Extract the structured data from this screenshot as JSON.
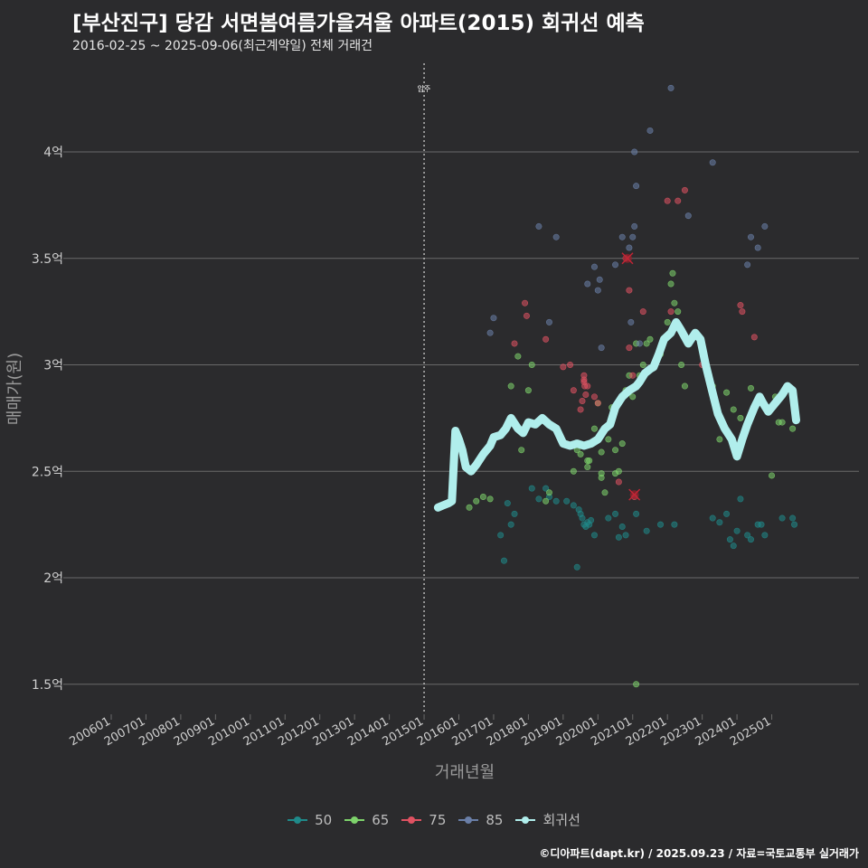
{
  "title": "[부산진구] 당감 서면봄여름가을겨울 아파트(2015) 회귀선 예측",
  "subtitle": "2016-02-25 ~ 2025-09-06(최근계약일) 전체 거래건",
  "caption": "©디아파트(dapt.kr) / 2025.09.23 / 자료=국토교통부 실거래가",
  "colors": {
    "s50": "#1f8a8a",
    "s65": "#7ed36b",
    "s75": "#e05262",
    "s85": "#6a7fa8",
    "reg": "#b0eeec",
    "grid": "#6a6a6a"
  },
  "chart_data": {
    "type": "scatter",
    "xlabel": "거래년월",
    "ylabel": "매매가(원)",
    "ylim": [
      1.4,
      4.35
    ],
    "y_ticks": [
      {
        "v": 1.5,
        "label": "1.5억"
      },
      {
        "v": 2.0,
        "label": "2억"
      },
      {
        "v": 2.5,
        "label": "2.5억"
      },
      {
        "v": 3.0,
        "label": "3억"
      },
      {
        "v": 3.5,
        "label": "3.5억"
      },
      {
        "v": 4.0,
        "label": "4억"
      }
    ],
    "x_ticks": [
      "200601",
      "200701",
      "200801",
      "200901",
      "201001",
      "201101",
      "201201",
      "201301",
      "201401",
      "201501",
      "201601",
      "201701",
      "201801",
      "201901",
      "202001",
      "202101",
      "202201",
      "202301",
      "202401",
      "202501"
    ],
    "annotation": {
      "x": 2015.0,
      "label": "입주"
    },
    "legend": [
      {
        "name": "50",
        "key": "s50"
      },
      {
        "name": "65",
        "key": "s65"
      },
      {
        "name": "75",
        "key": "s75"
      },
      {
        "name": "85",
        "key": "s85"
      },
      {
        "name": "회귀선",
        "key": "reg"
      }
    ],
    "series": [
      {
        "name": "50",
        "key": "s50",
        "points": [
          [
            2017.2,
            2.2
          ],
          [
            2017.3,
            2.08
          ],
          [
            2017.4,
            2.35
          ],
          [
            2017.5,
            2.25
          ],
          [
            2017.6,
            2.3
          ],
          [
            2018.1,
            2.42
          ],
          [
            2018.3,
            2.37
          ],
          [
            2018.5,
            2.42
          ],
          [
            2018.6,
            2.38
          ],
          [
            2018.8,
            2.36
          ],
          [
            2019.1,
            2.36
          ],
          [
            2019.3,
            2.34
          ],
          [
            2019.4,
            2.05
          ],
          [
            2019.45,
            2.32
          ],
          [
            2019.5,
            2.3
          ],
          [
            2019.55,
            2.28
          ],
          [
            2019.6,
            2.25
          ],
          [
            2019.65,
            2.24
          ],
          [
            2019.7,
            2.26
          ],
          [
            2019.75,
            2.25
          ],
          [
            2019.8,
            2.27
          ],
          [
            2019.9,
            2.2
          ],
          [
            2020.3,
            2.28
          ],
          [
            2020.5,
            2.3
          ],
          [
            2020.6,
            2.19
          ],
          [
            2020.7,
            2.24
          ],
          [
            2020.8,
            2.2
          ],
          [
            2021.1,
            2.3
          ],
          [
            2021.4,
            2.22
          ],
          [
            2021.8,
            2.25
          ],
          [
            2022.2,
            2.25
          ],
          [
            2023.3,
            2.28
          ],
          [
            2023.5,
            2.26
          ],
          [
            2023.7,
            2.3
          ],
          [
            2023.8,
            2.18
          ],
          [
            2023.9,
            2.15
          ],
          [
            2024.0,
            2.22
          ],
          [
            2024.1,
            2.37
          ],
          [
            2024.3,
            2.2
          ],
          [
            2024.4,
            2.18
          ],
          [
            2024.6,
            2.25
          ],
          [
            2024.7,
            2.25
          ],
          [
            2024.8,
            2.2
          ],
          [
            2025.3,
            2.28
          ],
          [
            2025.6,
            2.28
          ],
          [
            2025.65,
            2.25
          ]
        ]
      },
      {
        "name": "65",
        "key": "s65",
        "points": [
          [
            2016.3,
            2.33
          ],
          [
            2016.5,
            2.36
          ],
          [
            2016.7,
            2.38
          ],
          [
            2016.9,
            2.37
          ],
          [
            2017.5,
            2.9
          ],
          [
            2017.7,
            3.04
          ],
          [
            2017.8,
            2.6
          ],
          [
            2018.0,
            2.88
          ],
          [
            2018.1,
            3.0
          ],
          [
            2018.5,
            2.36
          ],
          [
            2018.6,
            2.4
          ],
          [
            2019.3,
            2.5
          ],
          [
            2019.4,
            2.6
          ],
          [
            2019.5,
            2.58
          ],
          [
            2019.7,
            2.55
          ],
          [
            2019.7,
            2.52
          ],
          [
            2019.75,
            2.55
          ],
          [
            2019.9,
            2.7
          ],
          [
            2020.0,
            2.82
          ],
          [
            2020.1,
            2.49
          ],
          [
            2020.1,
            2.47
          ],
          [
            2020.1,
            2.59
          ],
          [
            2020.2,
            2.4
          ],
          [
            2020.3,
            2.65
          ],
          [
            2020.4,
            2.8
          ],
          [
            2020.5,
            2.49
          ],
          [
            2020.5,
            2.6
          ],
          [
            2020.6,
            2.5
          ],
          [
            2020.7,
            2.63
          ],
          [
            2020.8,
            2.88
          ],
          [
            2020.9,
            2.95
          ],
          [
            2021.0,
            2.85
          ],
          [
            2021.1,
            3.1
          ],
          [
            2021.1,
            1.5
          ],
          [
            2021.2,
            2.95
          ],
          [
            2021.3,
            3.0
          ],
          [
            2021.4,
            3.1
          ],
          [
            2021.5,
            3.12
          ],
          [
            2021.8,
            3.05
          ],
          [
            2022.0,
            3.2
          ],
          [
            2022.1,
            3.38
          ],
          [
            2022.15,
            3.43
          ],
          [
            2022.2,
            3.29
          ],
          [
            2022.3,
            3.25
          ],
          [
            2022.4,
            3.0
          ],
          [
            2022.5,
            2.9
          ],
          [
            2022.6,
            3.1
          ],
          [
            2023.3,
            2.9
          ],
          [
            2023.5,
            2.65
          ],
          [
            2023.7,
            2.87
          ],
          [
            2023.9,
            2.79
          ],
          [
            2024.1,
            2.75
          ],
          [
            2024.4,
            2.89
          ],
          [
            2024.8,
            2.8
          ],
          [
            2025.1,
            2.85
          ],
          [
            2025.2,
            2.73
          ],
          [
            2025.3,
            2.73
          ],
          [
            2025.6,
            2.7
          ],
          [
            2025.0,
            2.48
          ]
        ]
      },
      {
        "name": "75",
        "key": "s75",
        "points": [
          [
            2017.6,
            3.1
          ],
          [
            2017.9,
            3.29
          ],
          [
            2017.95,
            3.23
          ],
          [
            2018.5,
            3.12
          ],
          [
            2019.0,
            2.99
          ],
          [
            2019.2,
            3.0
          ],
          [
            2019.3,
            2.88
          ],
          [
            2019.5,
            2.79
          ],
          [
            2019.55,
            2.83
          ],
          [
            2019.6,
            2.95
          ],
          [
            2019.6,
            2.93
          ],
          [
            2019.6,
            2.92
          ],
          [
            2019.62,
            2.9
          ],
          [
            2019.65,
            2.86
          ],
          [
            2019.7,
            2.9
          ],
          [
            2019.9,
            2.85
          ],
          [
            2020.0,
            2.82
          ],
          [
            2020.6,
            2.45
          ],
          [
            2020.8,
            3.5
          ],
          [
            2020.9,
            3.35
          ],
          [
            2020.9,
            3.08
          ],
          [
            2021.0,
            2.95
          ],
          [
            2021.05,
            2.38
          ],
          [
            2021.3,
            3.25
          ],
          [
            2022.0,
            3.77
          ],
          [
            2022.1,
            3.25
          ],
          [
            2022.3,
            3.77
          ],
          [
            2022.5,
            3.82
          ],
          [
            2023.0,
            3.0
          ],
          [
            2023.2,
            2.95
          ],
          [
            2024.1,
            3.28
          ],
          [
            2024.15,
            3.25
          ],
          [
            2024.5,
            3.13
          ]
        ]
      },
      {
        "name": "85",
        "key": "s85",
        "points": [
          [
            2016.9,
            3.15
          ],
          [
            2017.0,
            3.22
          ],
          [
            2018.3,
            3.65
          ],
          [
            2018.6,
            3.2
          ],
          [
            2018.8,
            3.6
          ],
          [
            2019.7,
            3.38
          ],
          [
            2019.9,
            3.46
          ],
          [
            2020.0,
            3.35
          ],
          [
            2020.05,
            3.4
          ],
          [
            2020.1,
            3.08
          ],
          [
            2020.5,
            3.47
          ],
          [
            2020.7,
            3.6
          ],
          [
            2020.9,
            3.55
          ],
          [
            2020.95,
            3.2
          ],
          [
            2021.0,
            3.6
          ],
          [
            2021.05,
            3.65
          ],
          [
            2021.05,
            4.0
          ],
          [
            2021.1,
            3.84
          ],
          [
            2021.5,
            4.1
          ],
          [
            2022.1,
            4.3
          ],
          [
            2022.6,
            3.7
          ],
          [
            2023.3,
            3.95
          ],
          [
            2024.3,
            3.47
          ],
          [
            2024.4,
            3.6
          ],
          [
            2024.6,
            3.55
          ],
          [
            2024.8,
            3.65
          ],
          [
            2021.2,
            3.1
          ]
        ]
      }
    ],
    "highlights": [
      [
        2020.85,
        3.5
      ],
      [
        2021.05,
        2.39
      ]
    ],
    "regression": [
      [
        2015.4,
        2.33
      ],
      [
        2015.55,
        2.34
      ],
      [
        2015.7,
        2.35
      ],
      [
        2015.8,
        2.36
      ],
      [
        2015.9,
        2.69
      ],
      [
        2016.0,
        2.65
      ],
      [
        2016.1,
        2.6
      ],
      [
        2016.2,
        2.52
      ],
      [
        2016.35,
        2.5
      ],
      [
        2016.5,
        2.53
      ],
      [
        2016.7,
        2.58
      ],
      [
        2016.9,
        2.62
      ],
      [
        2017.0,
        2.66
      ],
      [
        2017.2,
        2.67
      ],
      [
        2017.35,
        2.7
      ],
      [
        2017.5,
        2.75
      ],
      [
        2017.7,
        2.7
      ],
      [
        2017.85,
        2.68
      ],
      [
        2018.0,
        2.73
      ],
      [
        2018.2,
        2.72
      ],
      [
        2018.4,
        2.75
      ],
      [
        2018.6,
        2.72
      ],
      [
        2018.8,
        2.7
      ],
      [
        2019.0,
        2.63
      ],
      [
        2019.2,
        2.62
      ],
      [
        2019.4,
        2.63
      ],
      [
        2019.6,
        2.62
      ],
      [
        2019.8,
        2.63
      ],
      [
        2020.0,
        2.65
      ],
      [
        2020.2,
        2.7
      ],
      [
        2020.35,
        2.72
      ],
      [
        2020.5,
        2.8
      ],
      [
        2020.7,
        2.85
      ],
      [
        2020.9,
        2.88
      ],
      [
        2021.1,
        2.9
      ],
      [
        2021.2,
        2.92
      ],
      [
        2021.35,
        2.96
      ],
      [
        2021.5,
        2.98
      ],
      [
        2021.6,
        2.99
      ],
      [
        2021.75,
        3.05
      ],
      [
        2021.9,
        3.12
      ],
      [
        2022.1,
        3.15
      ],
      [
        2022.25,
        3.2
      ],
      [
        2022.4,
        3.16
      ],
      [
        2022.6,
        3.1
      ],
      [
        2022.8,
        3.15
      ],
      [
        2022.95,
        3.12
      ],
      [
        2023.1,
        3.0
      ],
      [
        2023.25,
        2.9
      ],
      [
        2023.45,
        2.77
      ],
      [
        2023.65,
        2.7
      ],
      [
        2023.85,
        2.65
      ],
      [
        2024.0,
        2.57
      ],
      [
        2024.15,
        2.65
      ],
      [
        2024.3,
        2.72
      ],
      [
        2024.5,
        2.8
      ],
      [
        2024.65,
        2.85
      ],
      [
        2024.75,
        2.82
      ],
      [
        2024.9,
        2.78
      ],
      [
        2025.1,
        2.82
      ],
      [
        2025.3,
        2.86
      ],
      [
        2025.45,
        2.9
      ],
      [
        2025.6,
        2.88
      ],
      [
        2025.7,
        2.74
      ]
    ]
  }
}
